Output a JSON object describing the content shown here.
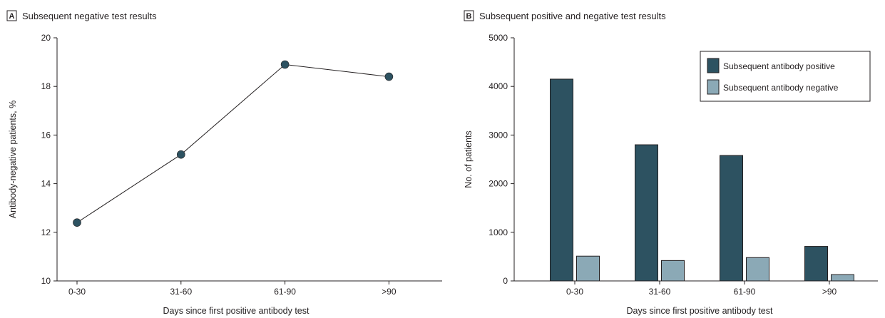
{
  "colors": {
    "marker": "#2d5261",
    "line": "#231f20",
    "positive": "#2d5261",
    "negative": "#8ba9b6",
    "axis": "#231f20",
    "bar_stroke": "#231f20"
  },
  "chart_data": [
    {
      "panel": "A",
      "type": "line",
      "title": "Subsequent negative test results",
      "xlabel": "Days since first positive antibody test",
      "ylabel": "Antibody-negative patients, %",
      "categories": [
        "0-30",
        "31-60",
        "61-90",
        ">90"
      ],
      "series": [
        {
          "values": [
            12.4,
            15.2,
            18.9,
            18.4
          ]
        }
      ],
      "ylim": [
        10,
        20
      ],
      "yticks": [
        "10",
        "12",
        "14",
        "16",
        "18",
        "20"
      ],
      "grid": false
    },
    {
      "panel": "B",
      "type": "bar",
      "title": "Subsequent positive and negative test results",
      "xlabel": "Days since first positive antibody test",
      "ylabel": "No. of patients",
      "categories": [
        "0-30",
        "31-60",
        "61-90",
        ">90"
      ],
      "series": [
        {
          "name": "Subsequent antibody positive",
          "values": [
            4150,
            2800,
            2580,
            710
          ]
        },
        {
          "name": "Subsequent antibody negative",
          "values": [
            510,
            420,
            480,
            130
          ]
        }
      ],
      "ylim": [
        0,
        5000
      ],
      "yticks": [
        "0",
        "1000",
        "2000",
        "3000",
        "4000",
        "5000"
      ],
      "legend": "top-right",
      "grid": false
    }
  ]
}
